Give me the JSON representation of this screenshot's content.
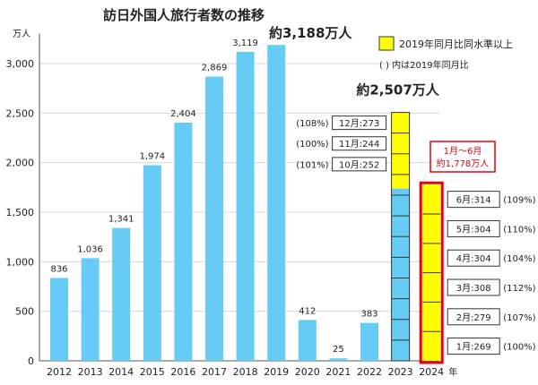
{
  "chart_data": {
    "type": "bar",
    "title": "訪日外国人旅行者数の推移",
    "y_unit": "万人",
    "x_unit": "年",
    "ylim": [
      0,
      3300
    ],
    "y_ticks": [
      0,
      500,
      1000,
      1500,
      2000,
      2500,
      3000
    ],
    "y_tick_labels": [
      "0",
      "500",
      "1,000",
      "1,500",
      "2,000",
      "2,500",
      "3,000"
    ],
    "grid": true,
    "categories": [
      "2012",
      "2013",
      "2014",
      "2015",
      "2016",
      "2017",
      "2018",
      "2019",
      "2020",
      "2021",
      "2022",
      "2023",
      "2024"
    ],
    "values": [
      836,
      1036,
      1341,
      1974,
      2404,
      2869,
      3119,
      3188,
      412,
      25,
      383,
      2507,
      1778
    ],
    "value_labels": [
      "836",
      "1,036",
      "1,341",
      "1,974",
      "2,404",
      "2,869",
      "3,119",
      "",
      "412",
      "25",
      "383",
      "",
      ""
    ],
    "colors": {
      "bar": "#66ccf5",
      "highlight": "#ffff00",
      "accent": "#e60012",
      "axis": "#555555",
      "grid": "#d9d9d9"
    },
    "callouts": {
      "total_2019": "約3,188万人",
      "total_2023": "約2,507万人",
      "total_2024_title": "1月～6月",
      "total_2024_value": "約1,778万人"
    },
    "legend": {
      "label": "2019年同月比同水準以上",
      "note": "( ) 内は2019年同月比"
    },
    "months_2023": [
      {
        "label": "10月:252",
        "pct": "(101%)",
        "value": 252,
        "highlight": true
      },
      {
        "label": "11月:244",
        "pct": "(100%)",
        "value": 244,
        "highlight": true
      },
      {
        "label": "12月:273",
        "pct": "(108%)",
        "value": 273,
        "highlight": true
      }
    ],
    "months_2024": [
      {
        "label": "1月:269",
        "pct": "(100%)",
        "value": 269
      },
      {
        "label": "2月:279",
        "pct": "(107%)",
        "value": 279
      },
      {
        "label": "3月:308",
        "pct": "(112%)",
        "value": 308
      },
      {
        "label": "4月:304",
        "pct": "(104%)",
        "value": 304
      },
      {
        "label": "5月:304",
        "pct": "(110%)",
        "value": 304
      },
      {
        "label": "6月:314",
        "pct": "(109%)",
        "value": 314
      }
    ],
    "segments_2023": 12,
    "segments_2024": 6
  }
}
